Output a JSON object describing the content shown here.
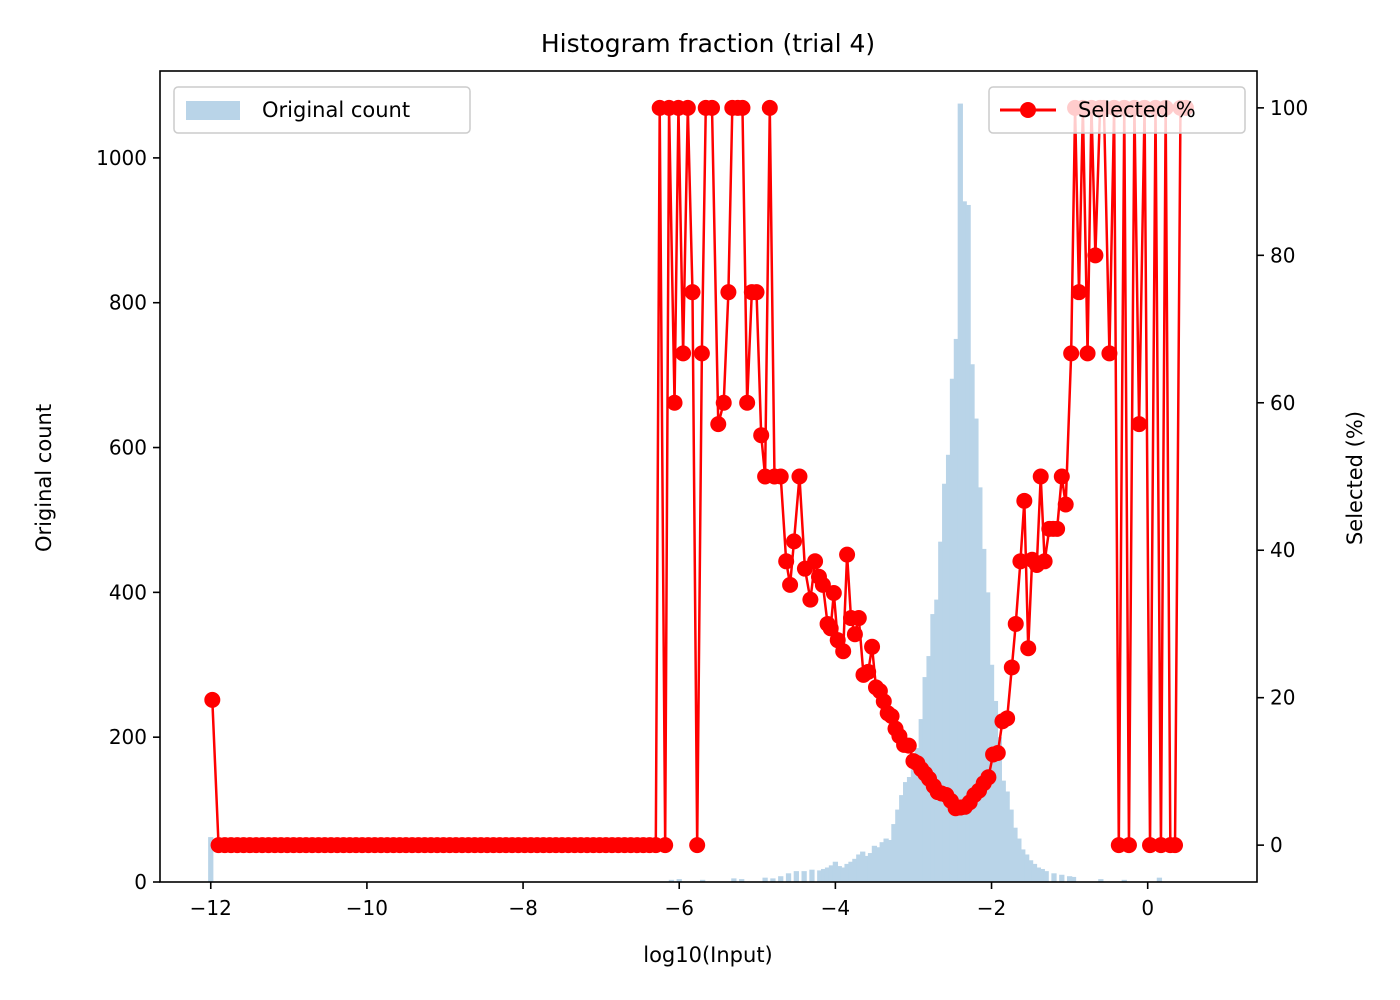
{
  "chart_data": {
    "type": "bar+line",
    "title": "Histogram fraction (trial 4)",
    "xlabel": "log10(Input)",
    "ylabel_left": "Original count",
    "ylabel_right": "Selected (%)",
    "xlim": [
      -12.65,
      1.4
    ],
    "ylim_left": [
      0,
      1120
    ],
    "ylim_right": [
      -5,
      105
    ],
    "x_ticks": [
      -12,
      -10,
      -8,
      -6,
      -4,
      -2,
      0
    ],
    "x_tick_labels": [
      "−12",
      "−10",
      "−8",
      "−6",
      "−4",
      "−2",
      "0"
    ],
    "y_left_ticks": [
      0,
      200,
      400,
      600,
      800,
      1000
    ],
    "y_left_tick_labels": [
      "0",
      "200",
      "400",
      "600",
      "800",
      "1000"
    ],
    "y_right_ticks": [
      0,
      20,
      40,
      60,
      80,
      100
    ],
    "y_right_tick_labels": [
      "0",
      "20",
      "40",
      "60",
      "80",
      "100"
    ],
    "legend_left": {
      "label": "Original count",
      "position": "top-left"
    },
    "legend_right": {
      "label": "Selected %",
      "position": "top-right"
    },
    "colors": {
      "bars": "#b9d4e8",
      "line": "#ff0000"
    },
    "histogram": {
      "name": "Original count",
      "bin_width": 0.0675,
      "bins": [
        [
          -12.0,
          62
        ],
        [
          -6.1,
          3
        ],
        [
          -6.0,
          4
        ],
        [
          -5.7,
          3
        ],
        [
          -5.3,
          5
        ],
        [
          -5.2,
          4
        ],
        [
          -4.9,
          6
        ],
        [
          -4.8,
          5
        ],
        [
          -4.7,
          8
        ],
        [
          -4.6,
          12
        ],
        [
          -4.5,
          15
        ],
        [
          -4.4,
          15
        ],
        [
          -4.3,
          17
        ],
        [
          -4.2,
          16
        ],
        [
          -4.15,
          18
        ],
        [
          -4.1,
          20
        ],
        [
          -4.05,
          23
        ],
        [
          -4.0,
          28
        ],
        [
          -3.95,
          22
        ],
        [
          -3.9,
          20
        ],
        [
          -3.85,
          25
        ],
        [
          -3.8,
          28
        ],
        [
          -3.75,
          32
        ],
        [
          -3.7,
          38
        ],
        [
          -3.65,
          42
        ],
        [
          -3.6,
          36
        ],
        [
          -3.55,
          40
        ],
        [
          -3.5,
          50
        ],
        [
          -3.45,
          48
        ],
        [
          -3.4,
          55
        ],
        [
          -3.35,
          60
        ],
        [
          -3.3,
          58
        ],
        [
          -3.25,
          80
        ],
        [
          -3.2,
          100
        ],
        [
          -3.15,
          120
        ],
        [
          -3.1,
          138
        ],
        [
          -3.05,
          145
        ],
        [
          -3.0,
          170
        ],
        [
          -2.95,
          185
        ],
        [
          -2.9,
          225
        ],
        [
          -2.85,
          283
        ],
        [
          -2.8,
          312
        ],
        [
          -2.75,
          370
        ],
        [
          -2.7,
          390
        ],
        [
          -2.65,
          470
        ],
        [
          -2.6,
          550
        ],
        [
          -2.55,
          590
        ],
        [
          -2.5,
          695
        ],
        [
          -2.45,
          750
        ],
        [
          -2.4,
          1075
        ],
        [
          -2.35,
          940
        ],
        [
          -2.3,
          935
        ],
        [
          -2.25,
          715
        ],
        [
          -2.2,
          640
        ],
        [
          -2.15,
          545
        ],
        [
          -2.1,
          460
        ],
        [
          -2.05,
          400
        ],
        [
          -2.0,
          300
        ],
        [
          -1.95,
          250
        ],
        [
          -1.9,
          200
        ],
        [
          -1.85,
          140
        ],
        [
          -1.8,
          125
        ],
        [
          -1.75,
          100
        ],
        [
          -1.7,
          75
        ],
        [
          -1.65,
          60
        ],
        [
          -1.6,
          45
        ],
        [
          -1.55,
          38
        ],
        [
          -1.5,
          30
        ],
        [
          -1.45,
          25
        ],
        [
          -1.4,
          20
        ],
        [
          -1.35,
          18
        ],
        [
          -1.3,
          15
        ],
        [
          -1.2,
          12
        ],
        [
          -1.1,
          10
        ],
        [
          -1.0,
          8
        ],
        [
          -0.95,
          7
        ],
        [
          -0.6,
          4
        ],
        [
          -0.3,
          3
        ],
        [
          0.15,
          6
        ]
      ]
    },
    "series": [
      {
        "name": "Selected %",
        "points": [
          [
            -11.98,
            19.7
          ],
          [
            -11.9,
            0
          ],
          [
            -11.82,
            0
          ],
          [
            -11.74,
            0
          ],
          [
            -11.66,
            0
          ],
          [
            -11.58,
            0
          ],
          [
            -11.5,
            0
          ],
          [
            -11.42,
            0
          ],
          [
            -11.34,
            0
          ],
          [
            -11.26,
            0
          ],
          [
            -11.18,
            0
          ],
          [
            -11.1,
            0
          ],
          [
            -11.02,
            0
          ],
          [
            -10.94,
            0
          ],
          [
            -10.86,
            0
          ],
          [
            -10.78,
            0
          ],
          [
            -10.7,
            0
          ],
          [
            -10.62,
            0
          ],
          [
            -10.54,
            0
          ],
          [
            -10.46,
            0
          ],
          [
            -10.38,
            0
          ],
          [
            -10.3,
            0
          ],
          [
            -10.22,
            0
          ],
          [
            -10.14,
            0
          ],
          [
            -10.06,
            0
          ],
          [
            -9.98,
            0
          ],
          [
            -9.9,
            0
          ],
          [
            -9.82,
            0
          ],
          [
            -9.74,
            0
          ],
          [
            -9.66,
            0
          ],
          [
            -9.58,
            0
          ],
          [
            -9.5,
            0
          ],
          [
            -9.42,
            0
          ],
          [
            -9.34,
            0
          ],
          [
            -9.26,
            0
          ],
          [
            -9.18,
            0
          ],
          [
            -9.1,
            0
          ],
          [
            -9.02,
            0
          ],
          [
            -8.94,
            0
          ],
          [
            -8.86,
            0
          ],
          [
            -8.78,
            0
          ],
          [
            -8.7,
            0
          ],
          [
            -8.62,
            0
          ],
          [
            -8.54,
            0
          ],
          [
            -8.46,
            0
          ],
          [
            -8.38,
            0
          ],
          [
            -8.3,
            0
          ],
          [
            -8.22,
            0
          ],
          [
            -8.14,
            0
          ],
          [
            -8.06,
            0
          ],
          [
            -7.98,
            0
          ],
          [
            -7.9,
            0
          ],
          [
            -7.82,
            0
          ],
          [
            -7.74,
            0
          ],
          [
            -7.66,
            0
          ],
          [
            -7.58,
            0
          ],
          [
            -7.5,
            0
          ],
          [
            -7.42,
            0
          ],
          [
            -7.34,
            0
          ],
          [
            -7.26,
            0
          ],
          [
            -7.18,
            0
          ],
          [
            -7.1,
            0
          ],
          [
            -7.02,
            0
          ],
          [
            -6.94,
            0
          ],
          [
            -6.86,
            0
          ],
          [
            -6.78,
            0
          ],
          [
            -6.7,
            0
          ],
          [
            -6.62,
            0
          ],
          [
            -6.54,
            0
          ],
          [
            -6.46,
            0
          ],
          [
            -6.38,
            0
          ],
          [
            -6.3,
            0
          ],
          [
            -6.25,
            100
          ],
          [
            -6.18,
            0
          ],
          [
            -6.13,
            100
          ],
          [
            -6.06,
            60
          ],
          [
            -6.01,
            100
          ],
          [
            -5.95,
            66.7
          ],
          [
            -5.89,
            100
          ],
          [
            -5.83,
            75
          ],
          [
            -5.77,
            0
          ],
          [
            -5.71,
            66.7
          ],
          [
            -5.66,
            100
          ],
          [
            -5.58,
            100
          ],
          [
            -5.5,
            57.1
          ],
          [
            -5.43,
            60
          ],
          [
            -5.37,
            75
          ],
          [
            -5.32,
            100
          ],
          [
            -5.25,
            100
          ],
          [
            -5.19,
            100
          ],
          [
            -5.13,
            60
          ],
          [
            -5.07,
            75
          ],
          [
            -5.01,
            75
          ],
          [
            -4.95,
            55.6
          ],
          [
            -4.9,
            50
          ],
          [
            -4.84,
            100
          ],
          [
            -4.78,
            50
          ],
          [
            -4.7,
            50
          ],
          [
            -4.63,
            38.5
          ],
          [
            -4.58,
            35.3
          ],
          [
            -4.53,
            41.2
          ],
          [
            -4.46,
            50
          ],
          [
            -4.39,
            37.5
          ],
          [
            -4.32,
            33.3
          ],
          [
            -4.26,
            38.5
          ],
          [
            -4.21,
            36.4
          ],
          [
            -4.16,
            35.3
          ],
          [
            -4.1,
            30
          ],
          [
            -4.06,
            29.4
          ],
          [
            -4.02,
            34.2
          ],
          [
            -3.97,
            27.8
          ],
          [
            -3.9,
            26.3
          ],
          [
            -3.85,
            39.4
          ],
          [
            -3.8,
            30.8
          ],
          [
            -3.75,
            28.6
          ],
          [
            -3.7,
            30.8
          ],
          [
            -3.64,
            23.1
          ],
          [
            -3.58,
            23.5
          ],
          [
            -3.53,
            26.9
          ],
          [
            -3.48,
            21.4
          ],
          [
            -3.43,
            20.9
          ],
          [
            -3.38,
            19.5
          ],
          [
            -3.33,
            17.9
          ],
          [
            -3.28,
            17.5
          ],
          [
            -3.23,
            15.8
          ],
          [
            -3.18,
            14.8
          ],
          [
            -3.12,
            13.6
          ],
          [
            -3.06,
            13.5
          ],
          [
            -3.0,
            11.4
          ],
          [
            -2.95,
            11.1
          ],
          [
            -2.9,
            10.3
          ],
          [
            -2.85,
            9.7
          ],
          [
            -2.8,
            9.0
          ],
          [
            -2.74,
            8.0
          ],
          [
            -2.69,
            7.2
          ],
          [
            -2.64,
            7.0
          ],
          [
            -2.58,
            6.8
          ],
          [
            -2.52,
            6.0
          ],
          [
            -2.46,
            5.0
          ],
          [
            -2.4,
            5.1
          ],
          [
            -2.34,
            5.2
          ],
          [
            -2.28,
            5.8
          ],
          [
            -2.22,
            6.8
          ],
          [
            -2.16,
            7.4
          ],
          [
            -2.1,
            8.4
          ],
          [
            -2.04,
            9.2
          ],
          [
            -1.98,
            12.3
          ],
          [
            -1.92,
            12.5
          ],
          [
            -1.86,
            16.8
          ],
          [
            -1.8,
            17.2
          ],
          [
            -1.74,
            24.1
          ],
          [
            -1.69,
            30
          ],
          [
            -1.63,
            38.5
          ],
          [
            -1.58,
            46.7
          ],
          [
            -1.53,
            26.7
          ],
          [
            -1.48,
            38.7
          ],
          [
            -1.42,
            38
          ],
          [
            -1.37,
            50
          ],
          [
            -1.32,
            38.5
          ],
          [
            -1.26,
            42.9
          ],
          [
            -1.21,
            42.9
          ],
          [
            -1.16,
            42.9
          ],
          [
            -1.1,
            50
          ],
          [
            -1.05,
            46.2
          ],
          [
            -0.98,
            66.7
          ],
          [
            -0.93,
            100
          ],
          [
            -0.88,
            75
          ],
          [
            -0.83,
            100
          ],
          [
            -0.77,
            66.7
          ],
          [
            -0.72,
            100
          ],
          [
            -0.67,
            80
          ],
          [
            -0.61,
            100
          ],
          [
            -0.56,
            100
          ],
          [
            -0.49,
            66.7
          ],
          [
            -0.43,
            100
          ],
          [
            -0.37,
            0
          ],
          [
            -0.3,
            100
          ],
          [
            -0.24,
            0
          ],
          [
            -0.17,
            100
          ],
          [
            -0.11,
            57.1
          ],
          [
            -0.04,
            100
          ],
          [
            0.03,
            0
          ],
          [
            0.1,
            100
          ],
          [
            0.17,
            0
          ],
          [
            0.23,
            100
          ],
          [
            0.29,
            0
          ],
          [
            0.35,
            0
          ],
          [
            0.42,
            100
          ],
          [
            0.49,
            100
          ]
        ]
      }
    ]
  }
}
